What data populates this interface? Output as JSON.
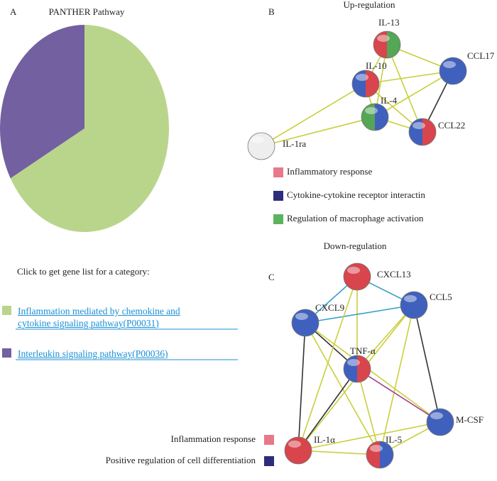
{
  "panels": {
    "a": "A",
    "b": "B",
    "c": "C"
  },
  "chart_data": {
    "type": "pie",
    "title": "PANTHER Pathway",
    "categories": [
      "Inflammation mediated by chemokine and cytokine signaling pathway(P00031)",
      "Interleukin signaling pathway(P00036)"
    ],
    "values": [
      67,
      33
    ],
    "colors": [
      "#b9d58b",
      "#7360a1"
    ]
  },
  "gene_list": {
    "prompt": "Click to get gene list for a category:"
  },
  "up": {
    "title": "Up-regulation",
    "nodes": [
      "IL-13",
      "IL-10",
      "CCL17",
      "IL-4",
      "CCL22",
      "IL-1ra"
    ],
    "legend": [
      "Inflammatory response",
      "Cytokine-cytokine receptor interactin",
      "Regulation of macrophage activation"
    ]
  },
  "down": {
    "title": "Down-regulation",
    "nodes": [
      "CXCL13",
      "CXCL9",
      "CCL5",
      "TNF-α",
      "M-CSF",
      "IL-1α",
      "IL-5"
    ],
    "legend": [
      "Inflammation response",
      "Positive regulation of cell differentiation"
    ]
  }
}
